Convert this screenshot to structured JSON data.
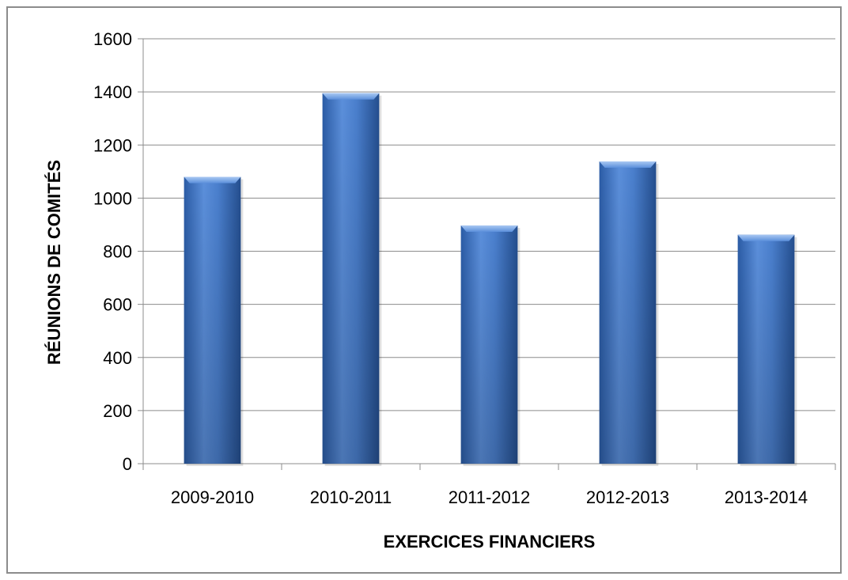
{
  "chart_data": {
    "type": "bar",
    "title": "",
    "xlabel": "EXERCICES FINANCIERS",
    "ylabel": "RÉUNIONS DE COMITÉS",
    "categories": [
      "2009-2010",
      "2010-2011",
      "2011-2012",
      "2012-2013",
      "2013-2014"
    ],
    "values": [
      1080,
      1395,
      897,
      1138,
      862
    ],
    "ylim": [
      0,
      1600
    ],
    "yticks": [
      0,
      200,
      400,
      600,
      800,
      1000,
      1200,
      1400,
      1600
    ],
    "grid": true,
    "legend": false,
    "colors": {
      "bar": "#3f74c4",
      "bar_light": "#6e9de0",
      "bar_dark": "#254f8f",
      "grid": "#8c8c8c"
    }
  }
}
